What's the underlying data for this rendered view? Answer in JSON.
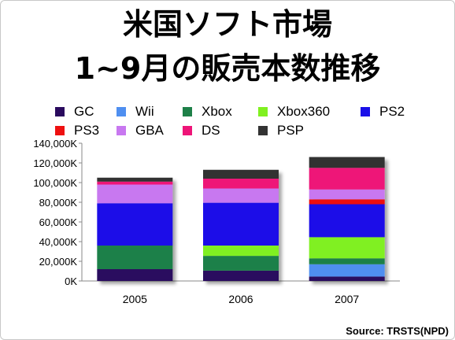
{
  "title_line1": "米国ソフト市場",
  "title_line2": "1~9月の販売本数推移",
  "source": "Source: TRSTS(NPD)",
  "chart_data": {
    "type": "bar",
    "stacked": true,
    "categories": [
      "2005",
      "2006",
      "2007"
    ],
    "ylim": [
      0,
      140000
    ],
    "yticks": [
      "0K",
      "20,000K",
      "40,000K",
      "60,000K",
      "80,000K",
      "100,000K",
      "120,000K",
      "140,000K"
    ],
    "legend_position": "top",
    "series": [
      {
        "name": "GC",
        "color": "#2a0a5e",
        "values": [
          12000,
          10500,
          4500
        ]
      },
      {
        "name": "Wii",
        "color": "#4f8ff0",
        "values": [
          0,
          0,
          12500
        ]
      },
      {
        "name": "Xbox",
        "color": "#1e8048",
        "values": [
          24000,
          15000,
          6000
        ]
      },
      {
        "name": "Xbox360",
        "color": "#80f020",
        "values": [
          0,
          10500,
          21500
        ]
      },
      {
        "name": "PS2",
        "color": "#1a10e8",
        "values": [
          43000,
          43500,
          33500
        ]
      },
      {
        "name": "PS3",
        "color": "#ee1010",
        "values": [
          0,
          0,
          5000
        ]
      },
      {
        "name": "GBA",
        "color": "#c878f0",
        "values": [
          19000,
          14500,
          10000
        ]
      },
      {
        "name": "DS",
        "color": "#ee1478",
        "values": [
          3000,
          10000,
          22000
        ]
      },
      {
        "name": "PSP",
        "color": "#333333",
        "values": [
          4000,
          9000,
          11000
        ]
      }
    ]
  }
}
